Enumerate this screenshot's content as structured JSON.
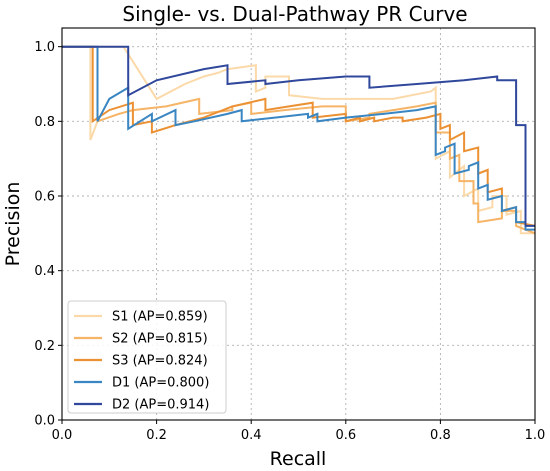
{
  "chart_data": {
    "type": "line",
    "title": "Single- vs. Dual-Pathway PR Curve",
    "xlabel": "Recall",
    "ylabel": "Precision",
    "xlim": [
      0.0,
      1.0
    ],
    "ylim": [
      0.0,
      1.05
    ],
    "xticks": [
      "0.0",
      "0.2",
      "0.4",
      "0.6",
      "0.8",
      "1.0"
    ],
    "yticks": [
      "0.0",
      "0.2",
      "0.4",
      "0.6",
      "0.8",
      "1.0"
    ],
    "grid": true,
    "legend_position": "lower-left",
    "series": [
      {
        "name": "S1 (AP=0.859)",
        "color": "#fbd9a9",
        "points": [
          [
            0,
            1.0
          ],
          [
            0.06,
            1.0
          ],
          [
            0.06,
            0.75
          ],
          [
            0.075,
            0.8
          ],
          [
            0.075,
            1.0
          ],
          [
            0.13,
            1.0
          ],
          [
            0.2,
            0.86
          ],
          [
            0.26,
            0.9
          ],
          [
            0.3,
            0.92
          ],
          [
            0.33,
            0.93
          ],
          [
            0.35,
            0.94
          ],
          [
            0.41,
            0.95
          ],
          [
            0.41,
            0.88
          ],
          [
            0.43,
            0.89
          ],
          [
            0.43,
            0.92
          ],
          [
            0.48,
            0.92
          ],
          [
            0.48,
            0.87
          ],
          [
            0.55,
            0.86
          ],
          [
            0.62,
            0.86
          ],
          [
            0.7,
            0.86
          ],
          [
            0.78,
            0.88
          ],
          [
            0.79,
            0.89
          ],
          [
            0.79,
            0.7
          ],
          [
            0.82,
            0.72
          ],
          [
            0.82,
            0.65
          ],
          [
            0.85,
            0.68
          ],
          [
            0.85,
            0.6
          ],
          [
            0.88,
            0.62
          ],
          [
            0.88,
            0.56
          ],
          [
            0.91,
            0.57
          ],
          [
            0.91,
            0.6
          ],
          [
            0.94,
            0.6
          ],
          [
            0.94,
            0.55
          ],
          [
            0.97,
            0.56
          ],
          [
            0.97,
            0.5
          ],
          [
            1.0,
            0.5
          ]
        ]
      },
      {
        "name": "S2 (AP=0.815)",
        "color": "#f6b466",
        "points": [
          [
            0,
            1.0
          ],
          [
            0.075,
            1.0
          ],
          [
            0.075,
            0.8
          ],
          [
            0.12,
            0.82
          ],
          [
            0.15,
            0.83
          ],
          [
            0.22,
            0.84
          ],
          [
            0.29,
            0.86
          ],
          [
            0.29,
            0.82
          ],
          [
            0.36,
            0.83
          ],
          [
            0.36,
            0.84
          ],
          [
            0.4,
            0.85
          ],
          [
            0.4,
            0.82
          ],
          [
            0.47,
            0.83
          ],
          [
            0.55,
            0.84
          ],
          [
            0.6,
            0.84
          ],
          [
            0.6,
            0.8
          ],
          [
            0.65,
            0.81
          ],
          [
            0.65,
            0.82
          ],
          [
            0.7,
            0.83
          ],
          [
            0.75,
            0.84
          ],
          [
            0.79,
            0.85
          ],
          [
            0.79,
            0.77
          ],
          [
            0.82,
            0.77
          ],
          [
            0.82,
            0.7
          ],
          [
            0.84,
            0.71
          ],
          [
            0.84,
            0.64
          ],
          [
            0.87,
            0.64
          ],
          [
            0.87,
            0.58
          ],
          [
            0.88,
            0.58
          ],
          [
            0.88,
            0.53
          ],
          [
            0.93,
            0.54
          ],
          [
            0.93,
            0.56
          ],
          [
            0.96,
            0.56
          ],
          [
            0.96,
            0.52
          ],
          [
            1.0,
            0.5
          ]
        ]
      },
      {
        "name": "S3 (AP=0.824)",
        "color": "#ec9133",
        "points": [
          [
            0,
            1.0
          ],
          [
            0.065,
            1.0
          ],
          [
            0.065,
            0.8
          ],
          [
            0.1,
            0.83
          ],
          [
            0.15,
            0.85
          ],
          [
            0.15,
            0.79
          ],
          [
            0.19,
            0.8
          ],
          [
            0.19,
            0.77
          ],
          [
            0.24,
            0.79
          ],
          [
            0.3,
            0.81
          ],
          [
            0.36,
            0.84
          ],
          [
            0.43,
            0.86
          ],
          [
            0.43,
            0.83
          ],
          [
            0.48,
            0.84
          ],
          [
            0.53,
            0.85
          ],
          [
            0.53,
            0.81
          ],
          [
            0.6,
            0.82
          ],
          [
            0.6,
            0.8
          ],
          [
            0.63,
            0.81
          ],
          [
            0.63,
            0.8
          ],
          [
            0.66,
            0.81
          ],
          [
            0.66,
            0.8
          ],
          [
            0.7,
            0.81
          ],
          [
            0.72,
            0.81
          ],
          [
            0.72,
            0.8
          ],
          [
            0.77,
            0.81
          ],
          [
            0.8,
            0.82
          ],
          [
            0.8,
            0.78
          ],
          [
            0.82,
            0.79
          ],
          [
            0.82,
            0.75
          ],
          [
            0.85,
            0.77
          ],
          [
            0.85,
            0.72
          ],
          [
            0.88,
            0.73
          ],
          [
            0.88,
            0.66
          ],
          [
            0.9,
            0.67
          ],
          [
            0.9,
            0.61
          ],
          [
            0.93,
            0.62
          ],
          [
            0.93,
            0.56
          ],
          [
            0.96,
            0.57
          ],
          [
            0.96,
            0.53
          ],
          [
            1.0,
            0.52
          ]
        ]
      },
      {
        "name": "D1 (AP=0.800)",
        "color": "#3a86c2",
        "points": [
          [
            0,
            1.0
          ],
          [
            0.075,
            1.0
          ],
          [
            0.075,
            0.8
          ],
          [
            0.1,
            0.86
          ],
          [
            0.14,
            0.89
          ],
          [
            0.14,
            0.78
          ],
          [
            0.19,
            0.82
          ],
          [
            0.19,
            0.8
          ],
          [
            0.24,
            0.83
          ],
          [
            0.24,
            0.79
          ],
          [
            0.28,
            0.8
          ],
          [
            0.35,
            0.82
          ],
          [
            0.38,
            0.83
          ],
          [
            0.38,
            0.8
          ],
          [
            0.45,
            0.81
          ],
          [
            0.52,
            0.82
          ],
          [
            0.52,
            0.81
          ],
          [
            0.54,
            0.82
          ],
          [
            0.54,
            0.8
          ],
          [
            0.6,
            0.81
          ],
          [
            0.68,
            0.82
          ],
          [
            0.75,
            0.83
          ],
          [
            0.79,
            0.84
          ],
          [
            0.79,
            0.71
          ],
          [
            0.81,
            0.72
          ],
          [
            0.81,
            0.73
          ],
          [
            0.83,
            0.74
          ],
          [
            0.83,
            0.66
          ],
          [
            0.86,
            0.67
          ],
          [
            0.86,
            0.68
          ],
          [
            0.88,
            0.69
          ],
          [
            0.88,
            0.62
          ],
          [
            0.9,
            0.63
          ],
          [
            0.9,
            0.59
          ],
          [
            0.93,
            0.6
          ],
          [
            0.93,
            0.56
          ],
          [
            0.96,
            0.57
          ],
          [
            0.96,
            0.53
          ],
          [
            0.98,
            0.53
          ],
          [
            0.98,
            0.51
          ],
          [
            1.0,
            0.51
          ]
        ]
      },
      {
        "name": "D2 (AP=0.914)",
        "color": "#30489c",
        "points": [
          [
            0,
            1.0
          ],
          [
            0.14,
            1.0
          ],
          [
            0.14,
            0.87
          ],
          [
            0.2,
            0.91
          ],
          [
            0.3,
            0.94
          ],
          [
            0.35,
            0.95
          ],
          [
            0.35,
            0.9
          ],
          [
            0.43,
            0.91
          ],
          [
            0.43,
            0.9
          ],
          [
            0.5,
            0.91
          ],
          [
            0.6,
            0.92
          ],
          [
            0.65,
            0.92
          ],
          [
            0.65,
            0.89
          ],
          [
            0.75,
            0.9
          ],
          [
            0.85,
            0.91
          ],
          [
            0.92,
            0.92
          ],
          [
            0.92,
            0.91
          ],
          [
            0.96,
            0.91
          ],
          [
            0.96,
            0.79
          ],
          [
            0.98,
            0.79
          ],
          [
            0.98,
            0.52
          ],
          [
            1.0,
            0.52
          ]
        ]
      }
    ]
  }
}
